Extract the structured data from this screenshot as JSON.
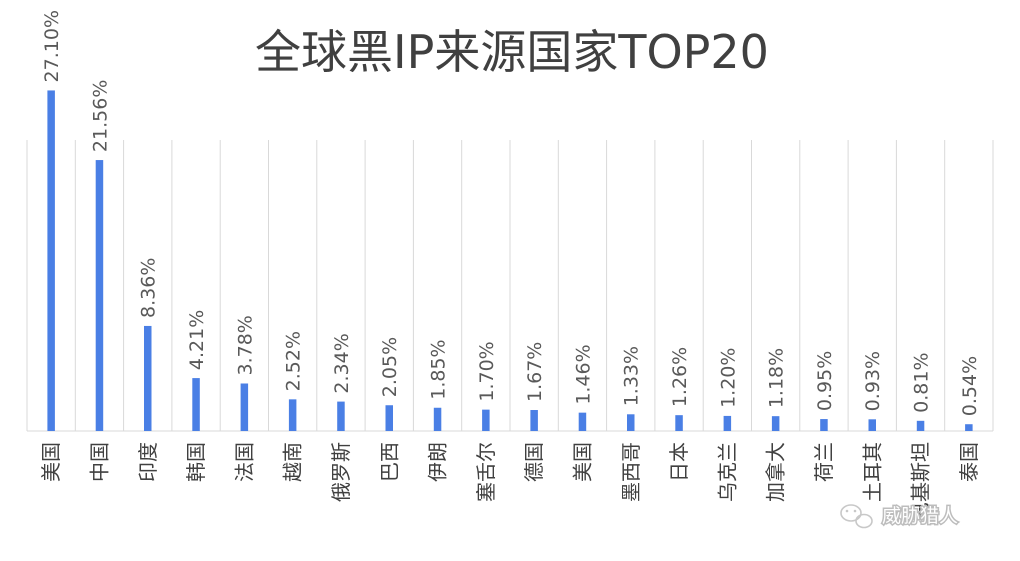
{
  "chart_data": {
    "type": "bar",
    "title": "全球黑IP来源国家TOP20",
    "categories": [
      "美国",
      "中国",
      "印度",
      "韩国",
      "法国",
      "越南",
      "俄罗斯",
      "巴西",
      "伊朗",
      "塞舌尔",
      "德国",
      "美国",
      "墨西哥",
      "日本",
      "乌克兰",
      "加拿大",
      "荷兰",
      "土耳其",
      "巴基斯坦",
      "泰国"
    ],
    "values": [
      27.1,
      21.56,
      8.36,
      4.21,
      3.78,
      2.52,
      2.34,
      2.05,
      1.85,
      1.7,
      1.67,
      1.46,
      1.33,
      1.26,
      1.2,
      1.18,
      0.95,
      0.93,
      0.81,
      0.54
    ],
    "value_labels": [
      "27.10%",
      "21.56%",
      "8.36%",
      "4.21%",
      "3.78%",
      "2.52%",
      "2.34%",
      "2.05%",
      "1.85%",
      "1.70%",
      "1.67%",
      "1.46%",
      "1.33%",
      "1.26%",
      "1.20%",
      "1.18%",
      "0.95%",
      "0.93%",
      "0.81%",
      "0.54%"
    ],
    "ylim": [
      0,
      30
    ],
    "grid": "vertical-separators",
    "bar_color": "#4a7fe5"
  },
  "watermark": {
    "text": "威胁猎人"
  }
}
